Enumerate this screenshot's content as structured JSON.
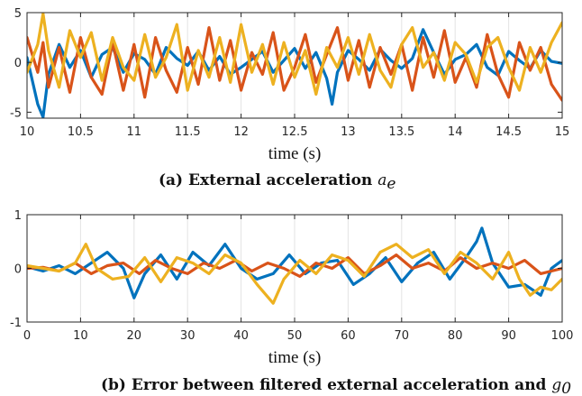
{
  "chart_data": [
    {
      "type": "line",
      "caption": "(a) External acceleration",
      "caption_math": "a",
      "caption_math_sub": "e",
      "xlabel": "time (s)",
      "ylabel": "",
      "xlim": [
        10,
        15
      ],
      "ylim": [
        -5.6,
        5
      ],
      "xticks": [
        10,
        10.5,
        11,
        11.5,
        12,
        12.5,
        13,
        13.5,
        14,
        14.5,
        15
      ],
      "xtick_labels": [
        "10",
        "10.5",
        "11",
        "11.5",
        "12",
        "12.5",
        "13",
        "13.5",
        "14",
        "14.5",
        "15"
      ],
      "yticks": [
        -5,
        0,
        5
      ],
      "ytick_labels": [
        "-5",
        "0",
        "5"
      ],
      "grid": "vertical",
      "series": [
        {
          "color": "#0072BD",
          "x": [
            10,
            10.1,
            10.15,
            10.2,
            10.3,
            10.4,
            10.5,
            10.6,
            10.7,
            10.8,
            10.9,
            11,
            11.1,
            11.2,
            11.3,
            11.4,
            11.5,
            11.6,
            11.7,
            11.8,
            11.9,
            12,
            12.1,
            12.2,
            12.3,
            12.4,
            12.5,
            12.6,
            12.7,
            12.8,
            12.85,
            12.9,
            13,
            13.1,
            13.2,
            13.3,
            13.4,
            13.5,
            13.6,
            13.7,
            13.8,
            13.9,
            14,
            14.1,
            14.2,
            14.3,
            14.4,
            14.5,
            14.6,
            14.7,
            14.8,
            14.9,
            15
          ],
          "y": [
            0.5,
            -4.2,
            -5.5,
            -1.2,
            1.8,
            -0.5,
            1.2,
            -1.5,
            0.8,
            1.5,
            -1.0,
            0.9,
            0.3,
            -1.2,
            1.5,
            0.4,
            -0.3,
            1.1,
            -0.8,
            0.6,
            -1.2,
            -0.5,
            0.3,
            1.1,
            -1.0,
            0.2,
            1.4,
            -0.6,
            1.0,
            -1.6,
            -4.2,
            -1.0,
            1.2,
            0.3,
            -0.8,
            1.3,
            0.2,
            -0.6,
            0.4,
            3.3,
            1.0,
            -1.2,
            0.3,
            0.8,
            1.8,
            -0.5,
            -1.3,
            1.1,
            0.2,
            -0.6,
            1.2,
            0.1,
            -0.1
          ]
        },
        {
          "color": "#D95319",
          "x": [
            10,
            10.1,
            10.15,
            10.2,
            10.3,
            10.4,
            10.5,
            10.6,
            10.7,
            10.8,
            10.9,
            11,
            11.1,
            11.2,
            11.3,
            11.4,
            11.5,
            11.6,
            11.7,
            11.8,
            11.9,
            12,
            12.1,
            12.2,
            12.3,
            12.4,
            12.5,
            12.6,
            12.7,
            12.8,
            12.9,
            13,
            13.1,
            13.2,
            13.3,
            13.4,
            13.5,
            13.6,
            13.7,
            13.8,
            13.9,
            14,
            14.1,
            14.2,
            14.3,
            14.4,
            14.5,
            14.6,
            14.7,
            14.8,
            14.9,
            15
          ],
          "y": [
            2.5,
            -1.0,
            2.0,
            -2.5,
            1.5,
            -3.0,
            2.5,
            -1.5,
            -3.2,
            2.0,
            -2.8,
            1.8,
            -3.5,
            2.5,
            -0.8,
            -3.0,
            1.5,
            -2.2,
            3.5,
            -1.8,
            2.2,
            -2.8,
            1.0,
            -1.2,
            3.0,
            -2.8,
            -0.5,
            2.8,
            -2.0,
            0.8,
            3.5,
            -1.8,
            2.2,
            -2.5,
            1.5,
            -1.2,
            1.8,
            -2.8,
            2.5,
            -1.5,
            3.2,
            -2.0,
            0.5,
            -2.5,
            2.8,
            -1.2,
            -3.5,
            2.0,
            -0.8,
            1.5,
            -2.2,
            -3.8
          ]
        },
        {
          "color": "#EDB120",
          "x": [
            10,
            10.1,
            10.15,
            10.2,
            10.3,
            10.4,
            10.5,
            10.6,
            10.7,
            10.8,
            10.9,
            11,
            11.1,
            11.2,
            11.3,
            11.4,
            11.5,
            11.6,
            11.7,
            11.8,
            11.9,
            12,
            12.1,
            12.2,
            12.3,
            12.4,
            12.5,
            12.6,
            12.7,
            12.8,
            12.9,
            13,
            13.1,
            13.2,
            13.3,
            13.4,
            13.5,
            13.6,
            13.7,
            13.8,
            13.9,
            14,
            14.1,
            14.2,
            14.3,
            14.4,
            14.5,
            14.6,
            14.7,
            14.8,
            14.9,
            15
          ],
          "y": [
            -1.0,
            1.8,
            4.9,
            1.2,
            -2.5,
            3.2,
            0.5,
            3.0,
            -1.8,
            2.5,
            -0.5,
            -1.8,
            2.8,
            -1.5,
            0.5,
            3.8,
            -2.8,
            1.2,
            -1.5,
            2.5,
            -2.0,
            3.8,
            -1.0,
            1.8,
            -2.2,
            2.0,
            -1.5,
            1.2,
            -3.2,
            1.5,
            -0.5,
            2.5,
            -1.2,
            2.8,
            -0.8,
            -2.5,
            1.8,
            3.5,
            -0.5,
            1.0,
            -1.8,
            2.0,
            0.8,
            -2.0,
            1.5,
            2.5,
            -0.5,
            -2.8,
            1.5,
            -1.0,
            2.0,
            4.0
          ]
        }
      ]
    },
    {
      "type": "line",
      "caption": "(b) Error between filtered external acceleration and",
      "caption_math": "g",
      "caption_math_sub": "0",
      "xlabel": "time (s)",
      "ylabel": "",
      "xlim": [
        0,
        100
      ],
      "ylim": [
        -1,
        1
      ],
      "xticks": [
        0,
        10,
        20,
        30,
        40,
        50,
        60,
        70,
        80,
        90,
        100
      ],
      "xtick_labels": [
        "0",
        "10",
        "20",
        "30",
        "40",
        "50",
        "60",
        "70",
        "80",
        "90",
        "100"
      ],
      "yticks": [
        -1,
        0,
        1
      ],
      "ytick_labels": [
        "-1",
        "0",
        "1"
      ],
      "grid": "vertical",
      "series": [
        {
          "color": "#0072BD",
          "x": [
            0,
            3,
            6,
            9,
            12,
            15,
            18,
            20,
            22,
            25,
            28,
            31,
            34,
            37,
            40,
            43,
            46,
            49,
            52,
            55,
            58,
            61,
            64,
            67,
            70,
            73,
            76,
            79,
            82,
            84,
            85,
            87,
            90,
            93,
            96,
            98,
            100
          ],
          "y": [
            0.03,
            -0.05,
            0.05,
            -0.1,
            0.1,
            0.3,
            0.0,
            -0.55,
            -0.1,
            0.25,
            -0.2,
            0.3,
            0.05,
            0.45,
            0.0,
            -0.2,
            -0.1,
            0.25,
            -0.1,
            0.1,
            0.15,
            -0.3,
            -0.1,
            0.2,
            -0.25,
            0.1,
            0.3,
            -0.2,
            0.2,
            0.5,
            0.75,
            0.1,
            -0.35,
            -0.3,
            -0.5,
            0.0,
            0.15
          ]
        },
        {
          "color": "#D95319",
          "x": [
            0,
            3,
            6,
            9,
            12,
            15,
            18,
            21,
            24,
            27,
            30,
            33,
            36,
            39,
            42,
            45,
            48,
            51,
            54,
            57,
            60,
            63,
            66,
            69,
            72,
            75,
            78,
            81,
            84,
            87,
            90,
            93,
            96,
            100
          ],
          "y": [
            0.0,
            0.02,
            -0.05,
            0.1,
            -0.1,
            0.05,
            0.1,
            -0.1,
            0.15,
            0.0,
            -0.1,
            0.1,
            0.0,
            0.15,
            -0.05,
            0.1,
            0.0,
            -0.15,
            0.1,
            0.0,
            0.2,
            -0.1,
            0.05,
            0.25,
            0.0,
            0.1,
            -0.05,
            0.2,
            0.0,
            0.1,
            0.0,
            0.15,
            -0.1,
            0.0
          ]
        },
        {
          "color": "#EDB120",
          "x": [
            0,
            3,
            6,
            9,
            11,
            13,
            16,
            19,
            22,
            25,
            28,
            31,
            34,
            37,
            40,
            43,
            46,
            48,
            51,
            54,
            57,
            60,
            63,
            66,
            69,
            72,
            75,
            78,
            81,
            84,
            87,
            90,
            92,
            94,
            96,
            98,
            100
          ],
          "y": [
            0.05,
            0.0,
            -0.05,
            0.1,
            0.45,
            0.0,
            -0.2,
            -0.15,
            0.2,
            -0.25,
            0.2,
            0.1,
            -0.1,
            0.25,
            0.1,
            -0.3,
            -0.65,
            -0.2,
            0.15,
            -0.1,
            0.25,
            0.15,
            -0.15,
            0.3,
            0.45,
            0.2,
            0.35,
            -0.1,
            0.3,
            0.1,
            -0.2,
            0.3,
            -0.2,
            -0.5,
            -0.35,
            -0.4,
            -0.2
          ]
        }
      ]
    }
  ]
}
